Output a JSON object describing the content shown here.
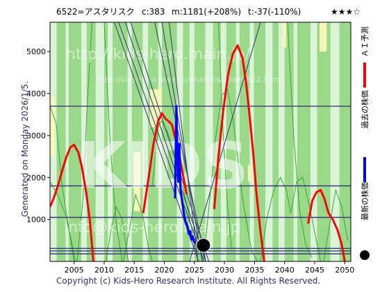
{
  "header": {
    "title": "6522=アスタリスク",
    "current": "c:383",
    "max": "m:1181(+208%)",
    "min": "t:-37(-110%)",
    "stars": "★★★☆"
  },
  "side_text": "Generated on Monday 2026/1/5.",
  "copyright": "Copyright (c) Kids-Hero Research Institute. All Rights Reserved.",
  "watermark": {
    "url": "http://kids-hero.main.jp/",
    "url2": "http://kids-hero.main.jp/analysis/code6522.html",
    "big": "KIDS",
    "email": "info@kids-hero.main.jp"
  },
  "legend": [
    {
      "label": "ＡＩ予測",
      "color": "#ff0000",
      "shape": "line"
    },
    {
      "label": "過去の株価",
      "color": "#0000ff",
      "shape": "line"
    },
    {
      "label": "最新の株価",
      "color": "#000000",
      "shape": "dot"
    }
  ],
  "colors": {
    "background_green": "#9ad88a",
    "band_light": "#e2f7e0",
    "band_yellow": "#f8f7bc",
    "hline": "#3c3c7a",
    "ai": "#ff0000",
    "past": "#0000ff",
    "green_curve": "#2aa02a",
    "trend": "#34346e"
  },
  "chart_data": {
    "type": "line",
    "xlim": [
      2001,
      2051
    ],
    "ylim": [
      0,
      5700
    ],
    "x_ticks": [
      "2005",
      "2010",
      "2015",
      "2020",
      "2025",
      "2030",
      "2035",
      "2040",
      "2045",
      "2050"
    ],
    "y_ticks": [
      "1000",
      "2000",
      "3000",
      "4000",
      "5000"
    ],
    "hlines": [
      3700,
      1800,
      1050,
      310,
      250,
      180
    ],
    "series": [
      {
        "name": "ＡＩ予測",
        "x": [
          2001,
          2001.6,
          2002.3,
          2003,
          2003.7,
          2004.4,
          2005,
          2005.7,
          2006.3,
          2007,
          2007.6,
          2008.2,
          2015.6,
          2016.5,
          2017.4,
          2018.2,
          2019,
          2019.6,
          2020.2,
          2020.8,
          2021.3,
          2021.8,
          2022.4,
          2023,
          2023.7,
          2027.6,
          2028.3,
          2029,
          2029.8,
          2030.6,
          2031.4,
          2032.2,
          2033,
          2033.6,
          2034.2,
          2034.8,
          2035.3,
          2036,
          2036.6,
          2043.2,
          2043.9,
          2044.6,
          2045.3,
          2046,
          2046.6,
          2047.3,
          2048,
          2048.8,
          2049.5,
          2050
        ],
        "y": [
          1300,
          1500,
          1800,
          2150,
          2480,
          2720,
          2780,
          2600,
          2250,
          1650,
          1000,
          0,
          null,
          1150,
          2000,
          2800,
          3350,
          3530,
          3400,
          3330,
          3250,
          2950,
          2600,
          2150,
          1600,
          null,
          1250,
          2500,
          3600,
          4450,
          4950,
          5150,
          4850,
          4250,
          3450,
          2550,
          1650,
          700,
          0,
          null,
          900,
          1450,
          1650,
          1700,
          1500,
          1150,
          1000,
          750,
          400,
          0
        ]
      },
      {
        "name": "過去の株価",
        "x": [
          2021.8,
          2022,
          2022.1,
          2022.2,
          2022.3,
          2022.4,
          2022.5,
          2022.7,
          2022.9,
          2023.1,
          2023.3,
          2023.5,
          2023.7,
          2023.9,
          2024.1,
          2024.3,
          2024.5,
          2024.7,
          2024.9,
          2025.1
        ],
        "y": [
          1500,
          3700,
          3000,
          2600,
          1900,
          2100,
          2800,
          1700,
          1500,
          1300,
          1100,
          950,
          900,
          800,
          650,
          720,
          520,
          600,
          480,
          430
        ]
      }
    ],
    "latest": {
      "x": 2026.5,
      "y": 383
    }
  }
}
